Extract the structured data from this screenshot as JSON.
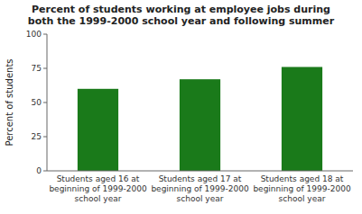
{
  "chart_data": {
    "type": "bar",
    "title": "Percent of students working at employee jobs during\nboth the 1999-2000 school year and following summer",
    "categories": [
      "Students aged 16 at\nbeginning of 1999-2000\nschool year",
      "Students aged 17 at\nbeginning of 1999-2000\nschool year",
      "Students aged 18 at\nbeginning of 1999-2000\nschool year"
    ],
    "values": [
      60,
      67,
      76
    ],
    "color": "#1a7a1a",
    "ylabel": "Percent of students",
    "ylim": [
      0,
      100
    ],
    "yticks": [
      0,
      25,
      50,
      75,
      100
    ],
    "grid": false
  }
}
